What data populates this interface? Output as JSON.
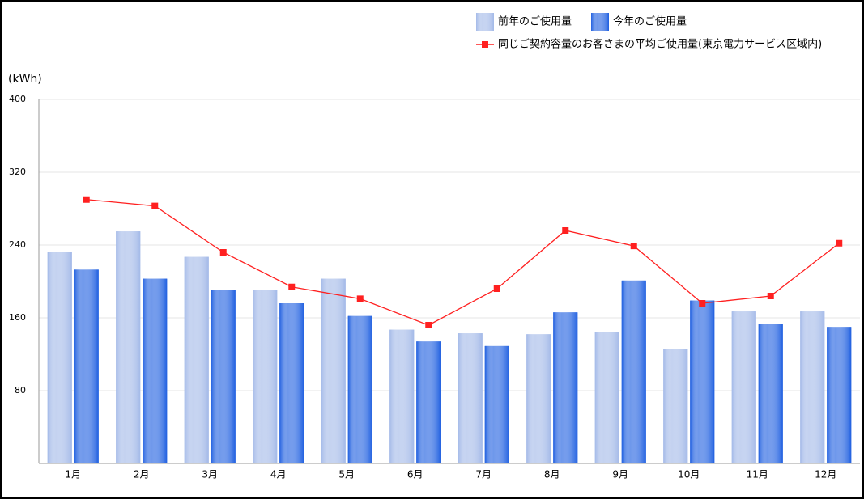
{
  "chart_data": {
    "type": "bar",
    "y_label": "(kWh)",
    "categories": [
      "1月",
      "2月",
      "3月",
      "4月",
      "5月",
      "6月",
      "7月",
      "8月",
      "9月",
      "10月",
      "11月",
      "12月"
    ],
    "series": [
      {
        "name": "前年のご使用量",
        "type": "bar",
        "color": "#a3b9e8",
        "values": [
          232,
          255,
          227,
          191,
          203,
          147,
          143,
          142,
          144,
          126,
          167,
          167
        ]
      },
      {
        "name": "今年のご使用量",
        "type": "bar",
        "color": "#1f5fe0",
        "values": [
          213,
          203,
          191,
          176,
          162,
          134,
          129,
          166,
          201,
          179,
          153,
          150
        ]
      },
      {
        "name": "同じご契約容量のお客さまの平均ご使用量(東京電力サービス区域内)",
        "type": "line",
        "color": "#ff2020",
        "values": [
          290,
          283,
          232,
          194,
          181,
          152,
          192,
          256,
          239,
          176,
          184,
          242
        ]
      }
    ],
    "ylim": [
      0,
      400
    ],
    "yticks": [
      80,
      160,
      240,
      320,
      400
    ],
    "grid": true
  }
}
